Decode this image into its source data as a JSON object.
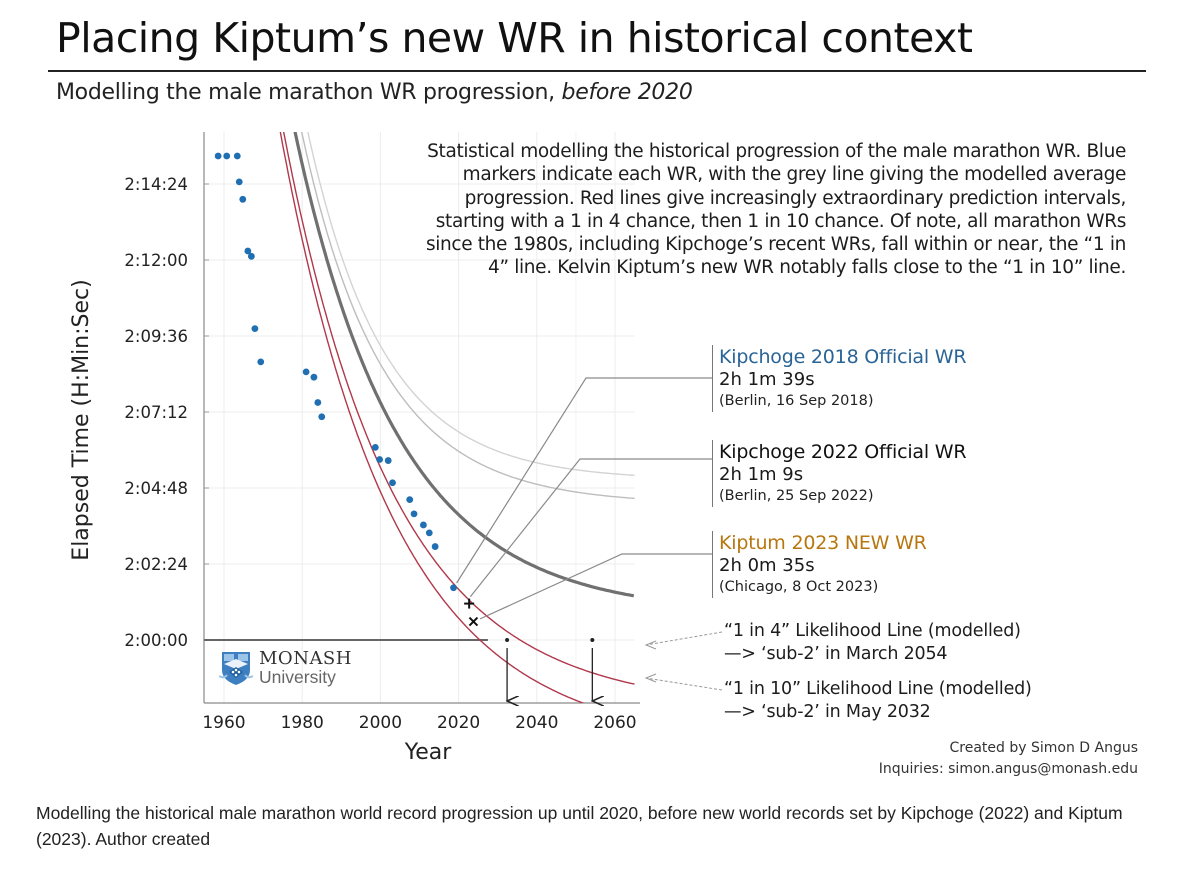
{
  "header": {
    "title": "Placing Kiptum’s new WR in historical context",
    "subtitle_main": "Modelling the male marathon WR progression, ",
    "subtitle_em": "before 2020"
  },
  "description": "Statistical modelling the historical progression of the male marathon WR. Blue markers indicate each WR, with the grey line giving the modelled average progression. Red lines give increasingly extraordinary prediction intervals, starting with a 1 in 4 chance, then 1 in 10 chance. Of note, all marathon WRs since the 1980s, including Kipchoge’s recent WRs, fall within or near, the “1 in 4” line. Kelvin Kiptum’s new WR notably falls close to the “1 in 10” line.",
  "annotations": [
    {
      "heading": "Kipchoge 2018 Official WR",
      "time": "2h 1m 39s",
      "place": "(Berlin, 16 Sep 2018)",
      "color": "#2a6496",
      "marker": "dot"
    },
    {
      "heading": "Kipchoge 2022 Official WR",
      "time": "2h 1m 9s",
      "place": "(Berlin, 25 Sep 2022)",
      "color": "#111111",
      "marker": "plus"
    },
    {
      "heading": "Kiptum 2023 NEW WR",
      "time": "2h 0m 35s",
      "place": "(Chicago, 8 Oct 2023)",
      "color": "#b8760f",
      "marker": "cross"
    }
  ],
  "likelihood_lines": [
    {
      "label": "“1 in 4” Likelihood Line (modelled)",
      "projection": "—> ‘sub-2’ in March 2054"
    },
    {
      "label": "“1 in 10” Likelihood Line (modelled)",
      "projection": "—> ‘sub-2’ in May 2032"
    }
  ],
  "logo": {
    "line1": "MONASH",
    "line2": "University"
  },
  "credit": {
    "line1": "Created by Simon D Angus",
    "line2": "Inquiries: simon.angus@monash.edu"
  },
  "caption": "Modelling the historical male marathon world record progression up until 2020, before new world records set by Kipchoge (2022) and Kiptum (2023). Author created",
  "chart_data": {
    "type": "scatter",
    "title": "Placing Kiptum’s new WR in historical context",
    "xlabel": "Year",
    "ylabel": "Elapsed Time (H:Min:Sec)",
    "xlim": [
      1954.5,
      2065
    ],
    "ylim_seconds": [
      7020,
      8160
    ],
    "x_ticks": [
      1960,
      1980,
      2000,
      2020,
      2040,
      2060
    ],
    "y_ticks": [
      {
        "seconds": 7200,
        "label": "2:00:00"
      },
      {
        "seconds": 7344,
        "label": "2:02:24"
      },
      {
        "seconds": 7488,
        "label": "2:04:48"
      },
      {
        "seconds": 7632,
        "label": "2:07:12"
      },
      {
        "seconds": 7776,
        "label": "2:09:36"
      },
      {
        "seconds": 7920,
        "label": "2:12:00"
      },
      {
        "seconds": 8064,
        "label": "2:14:24"
      }
    ],
    "grid": true,
    "world_records": {
      "name": "WR (blue markers)",
      "color": "#1f6fb2",
      "points": [
        [
          1958.5,
          8117
        ],
        [
          1960.7,
          8117
        ],
        [
          1963.4,
          8117
        ],
        [
          1963.9,
          8068
        ],
        [
          1964.8,
          8035
        ],
        [
          1966.1,
          7937
        ],
        [
          1967.0,
          7927
        ],
        [
          1967.9,
          7790
        ],
        [
          1969.4,
          7727
        ],
        [
          1981.0,
          7708
        ],
        [
          1983.0,
          7698
        ],
        [
          1984.0,
          7650
        ],
        [
          1985.0,
          7623
        ],
        [
          1998.7,
          7565
        ],
        [
          1999.8,
          7542
        ],
        [
          2002.0,
          7540
        ],
        [
          2003.1,
          7498
        ],
        [
          2007.5,
          7466
        ],
        [
          2008.6,
          7439
        ],
        [
          2011.0,
          7418
        ],
        [
          2012.5,
          7403
        ],
        [
          2014.0,
          7377
        ],
        [
          2018.7,
          7299
        ]
      ]
    },
    "new_records": [
      {
        "name": "Kipchoge 2022",
        "x": 2022.7,
        "y": 7269,
        "marker": "plus"
      },
      {
        "name": "Kiptum 2023",
        "x": 2023.8,
        "y": 7235,
        "marker": "cross"
      }
    ],
    "model_lines": [
      {
        "name": "Modelled average",
        "color": "#707070",
        "asymptote": 7249,
        "amp": 2190,
        "tau": 26.5,
        "x_start": 1955.8,
        "x_end": 2065
      },
      {
        "name": "Upper band (inner)",
        "color": "#bdbdbd",
        "asymptote": 7457,
        "amp": 2360,
        "tau": 20.6,
        "x_start": 1960,
        "x_end": 2065
      },
      {
        "name": "Upper band (outer)",
        "color": "#d3d3d3",
        "asymptote": 7503,
        "amp": 2560,
        "tau": 19.5,
        "x_start": 1962.5,
        "x_end": 2065
      },
      {
        "name": "1 in 4 likelihood line",
        "color": "#b0384a",
        "asymptote": 7070,
        "amp": 2230,
        "tau": 28.4,
        "x_start": 1954.5,
        "x_end": 2065
      },
      {
        "name": "1 in 10 likelihood line",
        "color": "#b0384a",
        "asymptote": 7000,
        "amp": 2270,
        "tau": 29.0,
        "x_start": 1954.5,
        "x_end": 2065
      }
    ],
    "sub2_reference": {
      "value_seconds": 7200,
      "x_end": 2027.5
    },
    "sub2_crossings": [
      {
        "line": "1 in 10",
        "year": 2032.4
      },
      {
        "line": "1 in 4",
        "year": 2054.2
      }
    ]
  }
}
